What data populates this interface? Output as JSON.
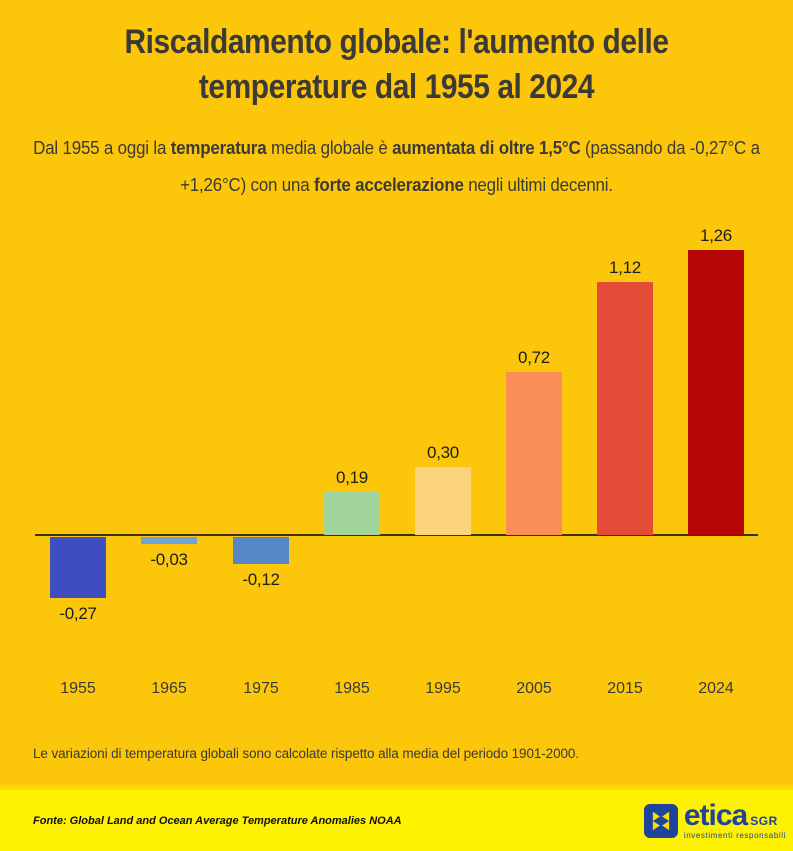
{
  "header": {
    "title_lines": [
      "Riscaldamento globale: l'aumento delle",
      "temperature dal 1955 al 2024"
    ],
    "subtitle_segments": [
      {
        "text": "Dal 1955 a oggi la ",
        "bold": false
      },
      {
        "text": "temperatura",
        "bold": true
      },
      {
        "text": " media globale è ",
        "bold": false
      },
      {
        "text": "aumentata di oltre 1,5°C",
        "bold": true
      },
      {
        "text": " (passando da -0,27°C a",
        "bold": false,
        "break_after": true
      },
      {
        "text": "+1,26°C) con una ",
        "bold": false
      },
      {
        "text": "forte accelerazione",
        "bold": true
      },
      {
        "text": " negli ultimi decenni.",
        "bold": false
      }
    ]
  },
  "chart_data": {
    "type": "bar",
    "title": "",
    "xlabel": "",
    "ylabel": "",
    "categories": [
      "1955",
      "1965",
      "1975",
      "1985",
      "1995",
      "2005",
      "2015",
      "2024"
    ],
    "values": [
      -0.27,
      -0.03,
      -0.12,
      0.19,
      0.3,
      0.72,
      1.12,
      1.26
    ],
    "value_labels": [
      "-0,27",
      "-0,03",
      "-0,12",
      "0,19",
      "0,30",
      "0,72",
      "1,12",
      "1,26"
    ],
    "bar_colors": [
      "#3E4EC0",
      "#6FA3DC",
      "#5587C9",
      "#A0D49B",
      "#FDD47E",
      "#F98E58",
      "#E34B36",
      "#B60707"
    ],
    "ylim": [
      -0.4,
      1.4
    ],
    "baseline": 0,
    "grid": false,
    "legend": "none",
    "unit": "°C",
    "value_label_color": "#1D1D1B",
    "axis_color": "#3A3322"
  },
  "note": "Le variazioni di temperatura globali sono calcolate rispetto alla media del periodo 1901-2000.",
  "footer": {
    "source": "Fonte: Global Land and Ocean Average Temperature Anomalies NOAA",
    "logo": {
      "brand": "etica",
      "suffix": "SGR",
      "tagline": "investimenti responsabili"
    }
  },
  "colors": {
    "background": "#FCC60A",
    "footer_background": "#FFF200",
    "footer_divider": "#FFD800",
    "text": "#3B3A36",
    "logo_blue": "#1F449B",
    "logo_yellow": "#FFDD00"
  }
}
